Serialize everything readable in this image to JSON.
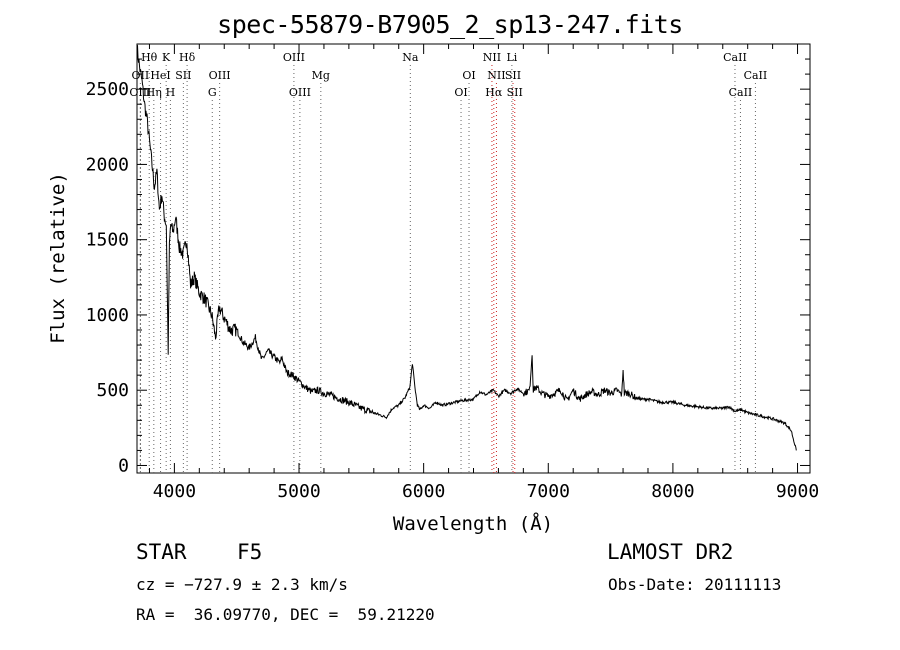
{
  "chart_data": {
    "type": "line",
    "title": "spec-55879-B7905_2_sp13-247.fits",
    "xlabel": "Wavelength (Å)",
    "ylabel": "Flux (relative)",
    "xlim": [
      3700,
      9100
    ],
    "ylim": [
      -50,
      2800
    ],
    "xticks": [
      4000,
      5000,
      6000,
      7000,
      8000,
      9000
    ],
    "yticks": [
      0,
      500,
      1000,
      1500,
      2000,
      2500
    ],
    "grid": false,
    "series": [
      {
        "x": [
          3700,
          3720,
          3740,
          3760,
          3780,
          3800,
          3820,
          3840,
          3860,
          3880,
          3900,
          3920,
          3935,
          3950,
          3960,
          3970,
          3990,
          4010,
          4040,
          4070,
          4100,
          4130,
          4160,
          4200,
          4250,
          4300,
          4330,
          4360,
          4400,
          4450,
          4500,
          4550,
          4600,
          4650,
          4700,
          4750,
          4800,
          4850,
          4860,
          4900,
          4950,
          5000,
          5050,
          5100,
          5150,
          5200,
          5250,
          5300,
          5400,
          5500,
          5600,
          5700,
          5750,
          5800,
          5850,
          5890,
          5910,
          5930,
          5950,
          5970,
          6000,
          6050,
          6100,
          6150,
          6200,
          6300,
          6400,
          6450,
          6500,
          6560,
          6600,
          6650,
          6700,
          6750,
          6800,
          6850,
          6870,
          6880,
          6900,
          6950,
          7000,
          7050,
          7100,
          7150,
          7200,
          7250,
          7300,
          7350,
          7400,
          7450,
          7500,
          7550,
          7590,
          7600,
          7610,
          7650,
          7700,
          7750,
          7800,
          7900,
          8000,
          8100,
          8200,
          8300,
          8400,
          8450,
          8500,
          8550,
          8600,
          8700,
          8800,
          8900,
          8950,
          8990
        ],
        "y": [
          2780,
          2650,
          2550,
          2400,
          2300,
          2150,
          2000,
          1850,
          1950,
          1700,
          1800,
          1650,
          1600,
          760,
          1450,
          1600,
          1550,
          1650,
          1450,
          1400,
          1500,
          1200,
          1250,
          1150,
          1100,
          1000,
          850,
          1050,
          980,
          900,
          900,
          820,
          780,
          850,
          700,
          760,
          720,
          680,
          720,
          620,
          600,
          560,
          520,
          490,
          500,
          480,
          470,
          450,
          420,
          380,
          350,
          320,
          380,
          400,
          450,
          520,
          680,
          520,
          400,
          370,
          400,
          380,
          420,
          400,
          410,
          430,
          440,
          490,
          470,
          500,
          460,
          500,
          480,
          510,
          480,
          500,
          740,
          500,
          520,
          480,
          460,
          480,
          500,
          430,
          500,
          440,
          470,
          490,
          470,
          500,
          480,
          500,
          470,
          640,
          480,
          480,
          450,
          440,
          440,
          420,
          420,
          400,
          390,
          380,
          380,
          390,
          360,
          370,
          350,
          330,
          310,
          280,
          230,
          100
        ]
      }
    ],
    "line_markers": [
      {
        "label": "Hθ",
        "x": 3798,
        "row": 0
      },
      {
        "label": "K",
        "x": 3934,
        "row": 0
      },
      {
        "label": "Hδ",
        "x": 4102,
        "row": 0
      },
      {
        "label": "OIII",
        "x": 4959,
        "row": 0
      },
      {
        "label": "Na",
        "x": 5893,
        "row": 0
      },
      {
        "label": "NII",
        "x": 6548,
        "row": 0
      },
      {
        "label": "Li",
        "x": 6708,
        "row": 0
      },
      {
        "label": "CaII",
        "x": 8498,
        "row": 0
      },
      {
        "label": "OII",
        "x": 3727,
        "row": 1
      },
      {
        "label": "HeI",
        "x": 3889,
        "row": 1
      },
      {
        "label": "SII",
        "x": 4072,
        "row": 1
      },
      {
        "label": "OIII",
        "x": 4363,
        "row": 1
      },
      {
        "label": "Mg",
        "x": 5175,
        "row": 1
      },
      {
        "label": "OI",
        "x": 6364,
        "row": 1
      },
      {
        "label": "NII",
        "x": 6584,
        "row": 1
      },
      {
        "label": "SII",
        "x": 6717,
        "row": 1
      },
      {
        "label": "CaII",
        "x": 8662,
        "row": 1
      },
      {
        "label": "OIII",
        "x": 3727,
        "row": 2
      },
      {
        "label": "Hη",
        "x": 3835,
        "row": 2
      },
      {
        "label": "H",
        "x": 3968,
        "row": 2
      },
      {
        "label": "G",
        "x": 4304,
        "row": 2
      },
      {
        "label": "OIII",
        "x": 5007,
        "row": 2
      },
      {
        "label": "OI",
        "x": 6300,
        "row": 2
      },
      {
        "label": "Hα",
        "x": 6563,
        "row": 2
      },
      {
        "label": "SII",
        "x": 6731,
        "row": 2
      },
      {
        "label": "CaII",
        "x": 8542,
        "row": 2
      }
    ]
  },
  "info": {
    "object_class": "STAR",
    "subclass": "F5",
    "survey": "LAMOST DR2",
    "cz": "cz = −727.9 ± 2.3 km/s",
    "obs_date": "Obs-Date: 20111113",
    "radec": "RA =  36.09770, DEC =  59.21220"
  }
}
